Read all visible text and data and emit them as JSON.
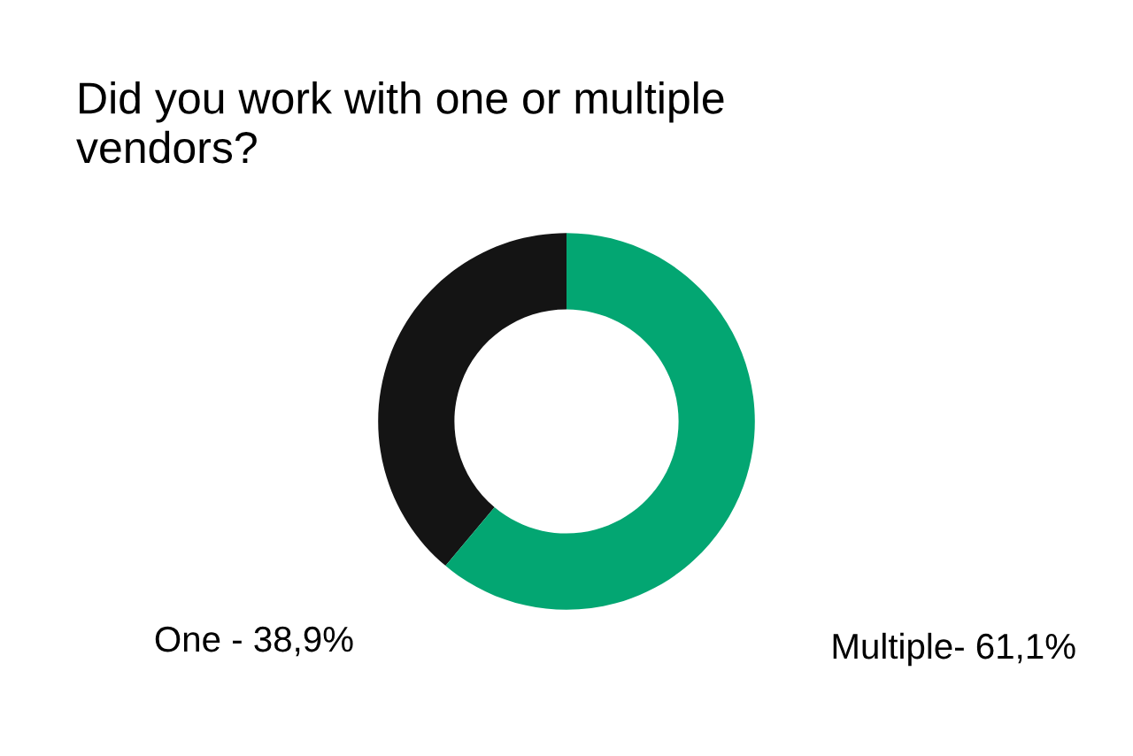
{
  "chart_data": {
    "type": "donut",
    "title": "Did you work with one or multiple\nvendors?",
    "categories": [
      "One -",
      "Multiple-"
    ],
    "values": [
      38.9,
      61.1
    ],
    "colors": [
      "#141414",
      "#03a672"
    ],
    "value_labels": [
      "38,9%",
      "61,1%"
    ]
  }
}
